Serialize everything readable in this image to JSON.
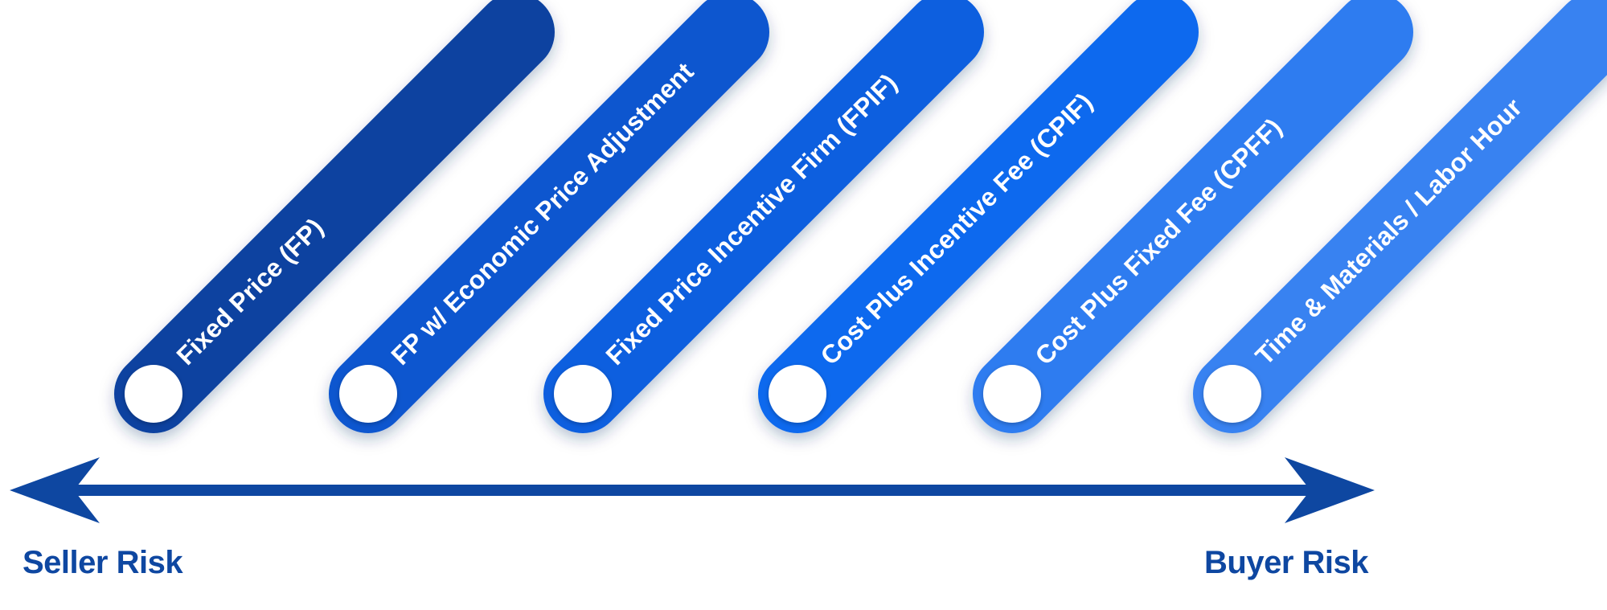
{
  "contract_types": [
    {
      "label": "Fixed Price (FP)",
      "color": "#0b42a0"
    },
    {
      "label": "FP w/ Economic Price Adjustment",
      "color": "#0d57cf"
    },
    {
      "label": "Fixed Price Incentive Firm (FPIF)",
      "color": "#0f5fdf"
    },
    {
      "label": "Cost Plus Incentive Fee (CPIF)",
      "color": "#1169ee"
    },
    {
      "label": "Cost Plus Fixed Fee (CPFF)",
      "color": "#2e7bf0"
    },
    {
      "label": "Time & Materials / Labor Hour",
      "color": "#3782f1"
    }
  ],
  "risk_axis": {
    "left_label": "Seller Risk",
    "right_label": "Buyer Risk",
    "color": "#0e47a1"
  }
}
